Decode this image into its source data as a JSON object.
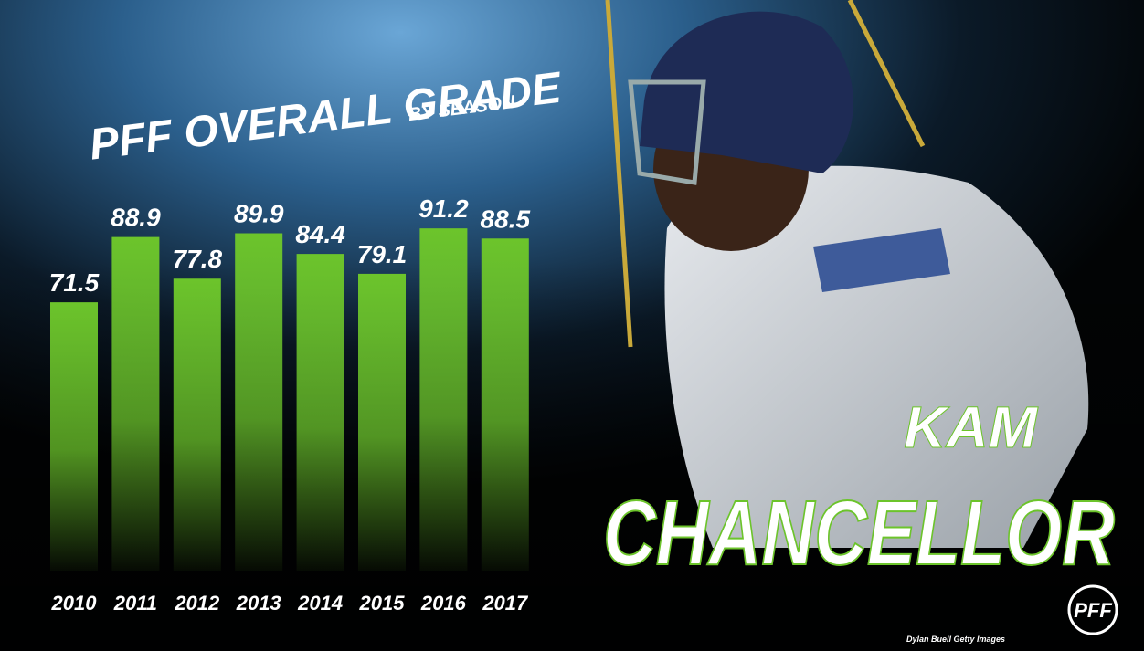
{
  "chart_data": {
    "type": "bar",
    "title": "PFF OVERALL GRADE",
    "subtitle": "BY SEASON",
    "categories": [
      "2010",
      "2011",
      "2012",
      "2013",
      "2014",
      "2015",
      "2016",
      "2017"
    ],
    "values": [
      71.5,
      88.9,
      77.8,
      89.9,
      84.4,
      79.1,
      91.2,
      88.5
    ],
    "color": "#6cc42b",
    "ylim": [
      0,
      100
    ],
    "player_first_name": "KAM",
    "player_last_name": "CHANCELLOR",
    "logo": "PFF",
    "photo_credit": "Dylan Buell Getty Images"
  }
}
